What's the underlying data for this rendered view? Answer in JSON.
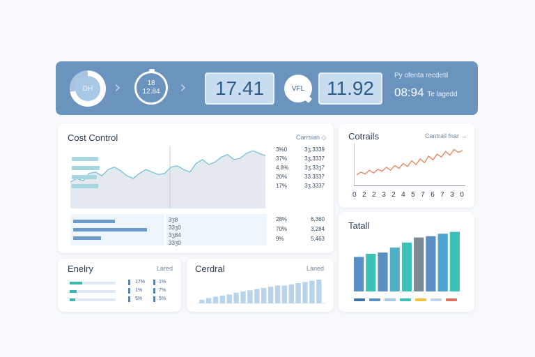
{
  "header": {
    "ring1_label": "DH",
    "ring2_line1": "18",
    "ring2_line2": "12.84",
    "kpi1": "17.41",
    "ring3_label": "VFL",
    "kpi2": "11.92",
    "right_subtitle": "Py ofenta recdetil",
    "right_time": "08:94",
    "right_time_note": "Te lagedd",
    "colors": {
      "bar": "#6a93bd",
      "kpi_box": "#c8dcef",
      "kpi_text": "#2f5d8a"
    }
  },
  "cost_control": {
    "title": "Cost Control",
    "link": "Carrsian",
    "link_icon": "diamond-icon",
    "table_top": [
      {
        "a": "3%0",
        "b": "3ʒ.3339"
      },
      {
        "a": "37%",
        "b": "3ʒ,3337"
      },
      {
        "a": "4.8%",
        "b": "3ʒ.33ʒ7"
      },
      {
        "a": "20%",
        "b": "33.3337"
      },
      {
        "a": "17%",
        "b": "3ʒ.3337"
      }
    ],
    "mid_labels": [
      "3ʒ8",
      "33ʒ0",
      "3ʒ84",
      "33ʒ0"
    ],
    "table_bottom": [
      {
        "a": "28%",
        "b": "6,360"
      },
      {
        "a": "70%",
        "b": "3,284"
      },
      {
        "a": "9%",
        "b": "5,463"
      }
    ],
    "line_values": [
      42,
      48,
      44,
      56,
      58,
      52,
      62,
      66,
      60,
      52,
      48,
      56,
      62,
      58,
      54,
      56,
      66,
      68,
      62,
      58,
      72,
      78,
      70,
      74,
      82,
      86,
      78,
      80,
      88,
      92,
      88,
      84
    ],
    "colors": {
      "line": "#7cc5d9",
      "fill": "#e4e9ef"
    }
  },
  "controls": {
    "title": "Cotrails",
    "link": "Cantrail fnar",
    "link_icon": "arrow-right-icon",
    "x_ticks": [
      "0",
      "2",
      "2",
      "3",
      "2",
      "4",
      "5",
      "7",
      "6",
      "7",
      "3",
      "0"
    ],
    "line_values": [
      18,
      24,
      20,
      28,
      22,
      30,
      26,
      34,
      28,
      38,
      32,
      42,
      36,
      48,
      40,
      52,
      44,
      58,
      50,
      62,
      56,
      68,
      60,
      72,
      66,
      70
    ],
    "colors": {
      "line": "#e8875c"
    }
  },
  "entity": {
    "title": "Enelry",
    "link": "Lared",
    "rows": [
      {
        "fill": 0.28,
        "p1": "17%",
        "p2": "1%"
      },
      {
        "fill": 0.15,
        "p1": "1%",
        "p2": "7%"
      },
      {
        "fill": 0.12,
        "p1": "5%",
        "p2": "5%"
      }
    ]
  },
  "central": {
    "title": "Cerdral",
    "link": "Laned",
    "bars": [
      6,
      9,
      11,
      13,
      15,
      18,
      20,
      22,
      24,
      26,
      28,
      30,
      30,
      32,
      34,
      36,
      38,
      40
    ]
  },
  "total": {
    "title": "Tatall",
    "bars": [
      {
        "value": 55,
        "color": "#5a8fc4"
      },
      {
        "value": 60,
        "color": "#3bc1b8"
      },
      {
        "value": 62,
        "color": "#5a8fc4"
      },
      {
        "value": 70,
        "color": "#4fb0c8"
      },
      {
        "value": 78,
        "color": "#3bc1b8"
      },
      {
        "value": 86,
        "color": "#7c8a97"
      },
      {
        "value": 88,
        "color": "#5a8fc4"
      },
      {
        "value": 92,
        "color": "#4fa3d2"
      },
      {
        "value": 95,
        "color": "#3bc1b8"
      }
    ],
    "legend": [
      "#3c73a8",
      "#5a8fc4",
      "#a7c6e3",
      "#3bc1b8",
      "#f2c23a",
      "#c3d5e8",
      "#e07060"
    ]
  }
}
